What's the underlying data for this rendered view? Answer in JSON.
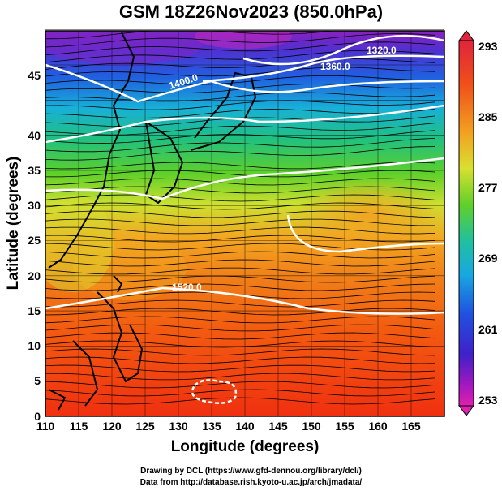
{
  "title": "GSM 18Z26Nov2023 (850.0hPa)",
  "axes": {
    "x_label": "Longitude (degrees)",
    "y_label": "Latitude  (degrees)",
    "x_ticks": [
      "110",
      "115",
      "120",
      "125",
      "130",
      "135",
      "140",
      "145",
      "150",
      "155",
      "160",
      "165"
    ],
    "y_ticks": [
      "0",
      "5",
      "10",
      "15",
      "20",
      "25",
      "30",
      "35",
      "40",
      "45"
    ]
  },
  "colorbar": {
    "labels": [
      "293",
      "285",
      "277",
      "269",
      "261",
      "253"
    ],
    "colors": [
      "#e0243c",
      "#f06a1a",
      "#f3b020",
      "#dfe030",
      "#5fd02a",
      "#1fc070",
      "#18a8d0",
      "#2050e0",
      "#4020c8",
      "#a018c0",
      "#e020b0"
    ]
  },
  "contours": [
    "1320.0",
    "1360.0",
    "1400.0",
    "1520.0"
  ],
  "credits": {
    "line1": "Drawing by DCL (https://www.gfd-dennou.org/library/dcl/)",
    "line2": "Data from http://database.rish.kyoto-u.ac.jp/arch/jmadata/"
  }
}
